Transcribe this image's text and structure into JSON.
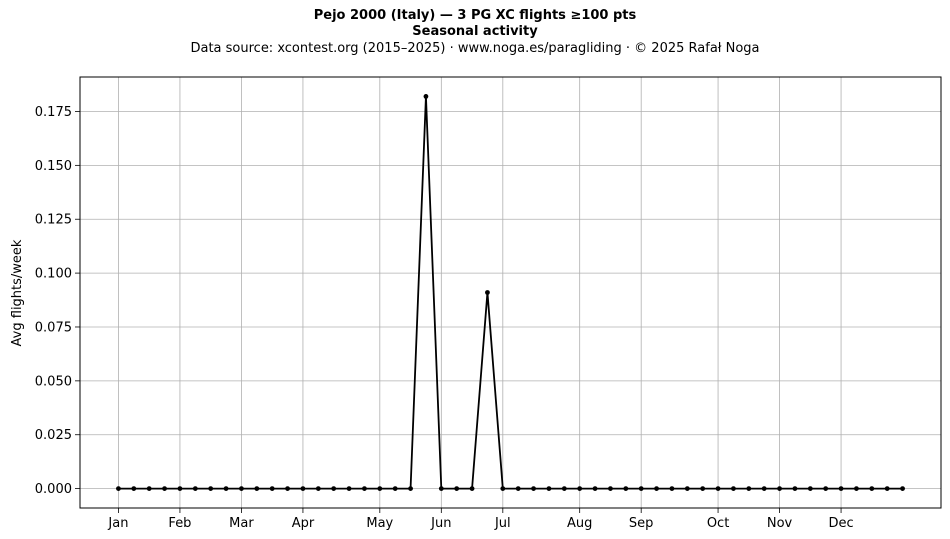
{
  "header": {
    "title": "Pejo 2000 (Italy)  —  3 PG XC flights ≥100 pts",
    "subtitle": "Seasonal activity",
    "source": "Data source: xcontest.org (2015–2025)  ·  www.noga.es/paragliding  ·  © 2025 Rafał Noga"
  },
  "chart_data": {
    "type": "line",
    "title": "Pejo 2000 (Italy)  —  3 PG XC flights ≥100 pts",
    "subtitle": "Seasonal activity",
    "xlabel": "",
    "ylabel": "Avg flights/week",
    "x_unit": "week of year",
    "xlim": [
      -2.5,
      53.5
    ],
    "ylim": [
      -0.009,
      0.191
    ],
    "grid": true,
    "month_ticks": [
      {
        "label": "Jan",
        "week": 0
      },
      {
        "label": "Feb",
        "week": 4
      },
      {
        "label": "Mar",
        "week": 8
      },
      {
        "label": "Apr",
        "week": 12
      },
      {
        "label": "May",
        "week": 17
      },
      {
        "label": "Jun",
        "week": 21
      },
      {
        "label": "Jul",
        "week": 25
      },
      {
        "label": "Aug",
        "week": 30
      },
      {
        "label": "Sep",
        "week": 34
      },
      {
        "label": "Oct",
        "week": 39
      },
      {
        "label": "Nov",
        "week": 43
      },
      {
        "label": "Dec",
        "week": 47
      }
    ],
    "y_ticks": [
      {
        "value": 0.0,
        "label": "0.000"
      },
      {
        "value": 0.025,
        "label": "0.025"
      },
      {
        "value": 0.05,
        "label": "0.050"
      },
      {
        "value": 0.075,
        "label": "0.075"
      },
      {
        "value": 0.1,
        "label": "0.100"
      },
      {
        "value": 0.125,
        "label": "0.125"
      },
      {
        "value": 0.15,
        "label": "0.150"
      },
      {
        "value": 0.175,
        "label": "0.175"
      }
    ],
    "series": [
      {
        "color": "#000000",
        "x": [
          0,
          1,
          2,
          3,
          4,
          5,
          6,
          7,
          8,
          9,
          10,
          11,
          12,
          13,
          14,
          15,
          16,
          17,
          18,
          19,
          20,
          21,
          22,
          23,
          24,
          25,
          26,
          27,
          28,
          29,
          30,
          31,
          32,
          33,
          34,
          35,
          36,
          37,
          38,
          39,
          40,
          41,
          42,
          43,
          44,
          45,
          46,
          47,
          48,
          49,
          50,
          51
        ],
        "y": [
          0,
          0,
          0,
          0,
          0,
          0,
          0,
          0,
          0,
          0,
          0,
          0,
          0,
          0,
          0,
          0,
          0,
          0,
          0,
          0,
          0.182,
          0,
          0,
          0,
          0.091,
          0,
          0,
          0,
          0,
          0,
          0,
          0,
          0,
          0,
          0,
          0,
          0,
          0,
          0,
          0,
          0,
          0,
          0,
          0,
          0,
          0,
          0,
          0,
          0,
          0,
          0,
          0
        ]
      }
    ]
  }
}
